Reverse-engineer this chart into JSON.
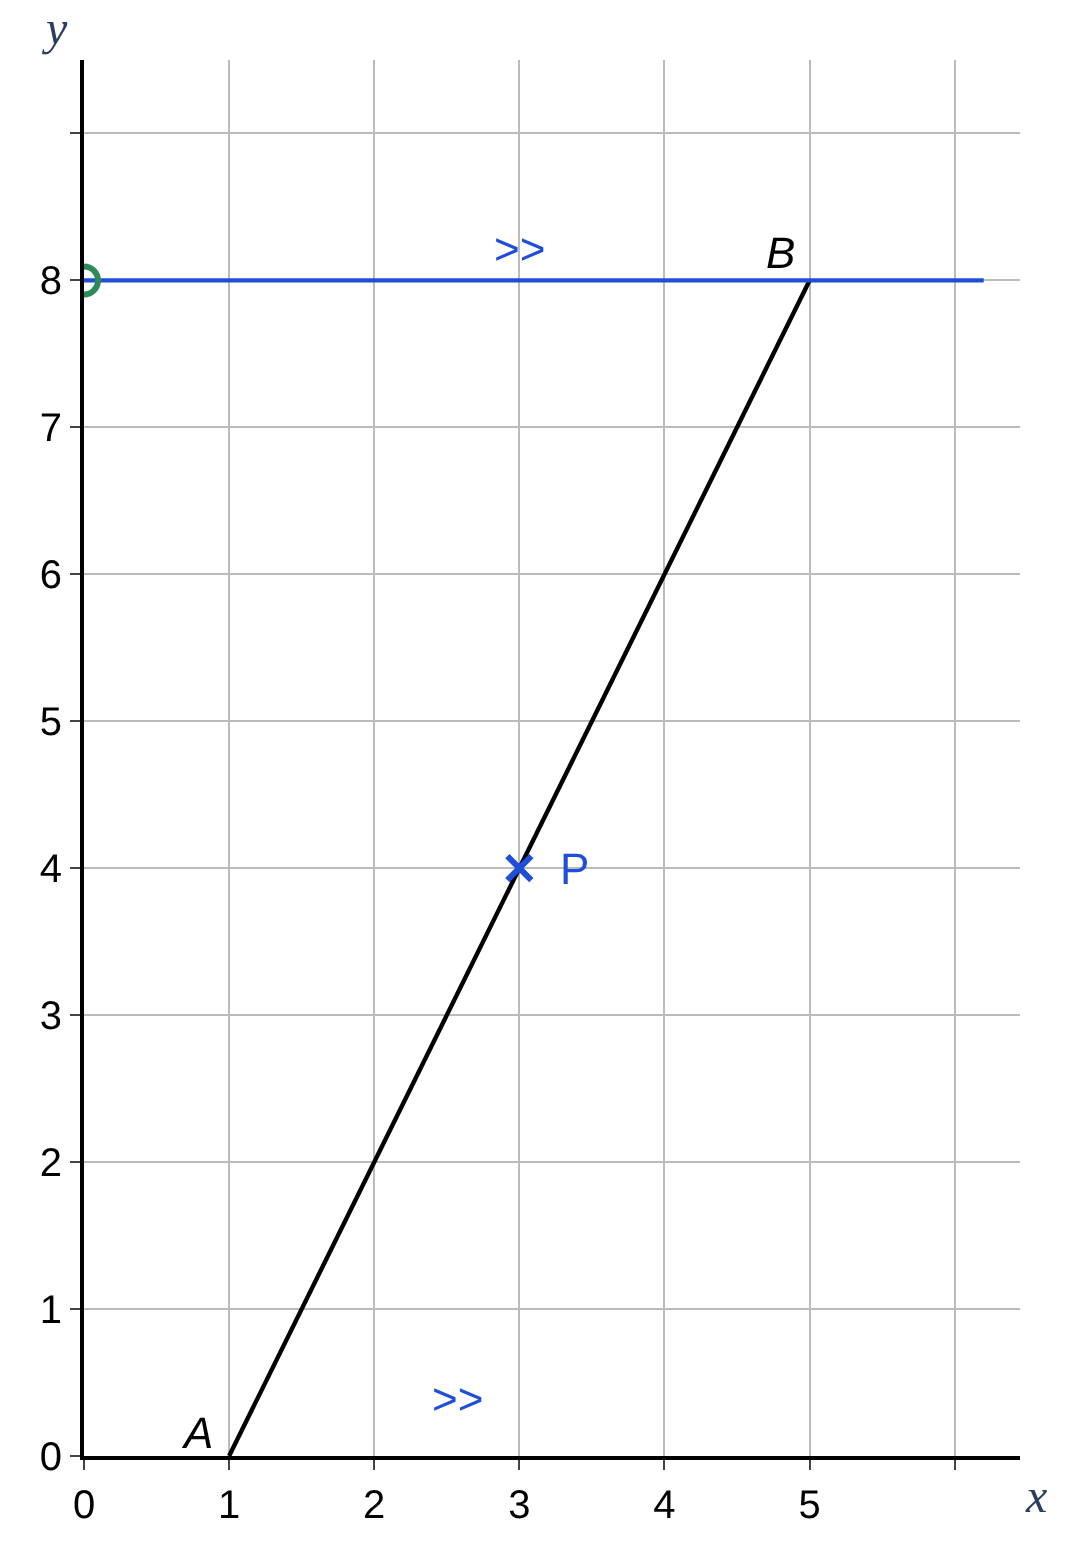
{
  "chart_data": {
    "type": "line",
    "xlabel": "x",
    "ylabel": "y",
    "xlim": [
      0,
      6.45
    ],
    "ylim": [
      0,
      9.5
    ],
    "xticks": [
      0,
      1,
      2,
      3,
      4,
      5,
      {
        "value": 6,
        "label": null
      }
    ],
    "yticks": [
      0,
      1,
      2,
      3,
      4,
      5,
      6,
      7,
      8,
      {
        "value": 9,
        "label": null
      }
    ],
    "grid": true,
    "series": [
      {
        "x": [
          1,
          5
        ],
        "values": [
          0,
          8
        ],
        "color": "#000000",
        "marker": "none"
      },
      {
        "x": [
          0,
          6.2
        ],
        "values": [
          8,
          8
        ],
        "color": "#1f4fd8",
        "marker": "none"
      },
      {
        "type": "scatter",
        "x": [
          3
        ],
        "values": [
          4
        ],
        "color": "#1f4fd8",
        "marker": "cross"
      },
      {
        "type": "scatter",
        "x": [
          0
        ],
        "values": [
          8
        ],
        "color": "#2e8b57",
        "marker": "circle"
      }
    ],
    "annotations": [
      {
        "text": "A",
        "x": 1,
        "y": 0
      },
      {
        "text": "B",
        "x": 5,
        "y": 8
      },
      {
        "text": "P",
        "x": 3,
        "y": 4
      },
      {
        "text": ">>",
        "x": 3,
        "y": 8
      },
      ">>"
    ]
  }
}
